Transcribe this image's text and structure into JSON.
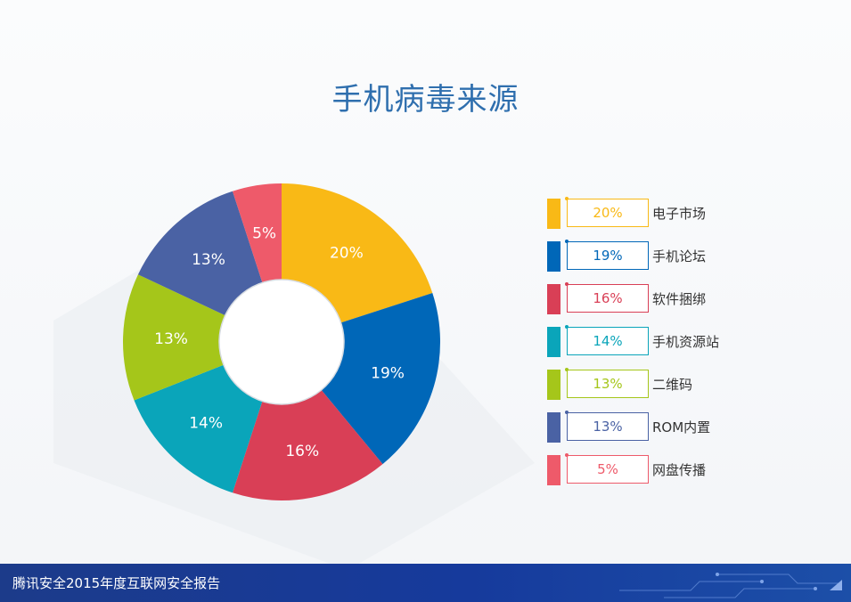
{
  "title": "手机病毒来源",
  "footer": {
    "text": "腾讯安全2015年度互联网安全报告"
  },
  "chart_data": {
    "type": "pie",
    "title": "手机病毒来源",
    "slices": [
      {
        "label": "电子市场",
        "value": 20,
        "display": "20%",
        "color": "#f9b916"
      },
      {
        "label": "手机论坛",
        "value": 19,
        "display": "19%",
        "color": "#0067b8"
      },
      {
        "label": "软件捆绑",
        "value": 16,
        "display": "16%",
        "color": "#d93f56"
      },
      {
        "label": "手机资源站",
        "value": 14,
        "display": "14%",
        "color": "#0aa5ba"
      },
      {
        "label": "二维码",
        "value": 13,
        "display": "13%",
        "color": "#a5c61a"
      },
      {
        "label": "ROM内置",
        "value": 13,
        "display": "13%",
        "color": "#4a62a4"
      },
      {
        "label": "网盘传播",
        "value": 5,
        "display": "5%",
        "color": "#ee5a6a"
      }
    ],
    "legend_position": "right"
  }
}
